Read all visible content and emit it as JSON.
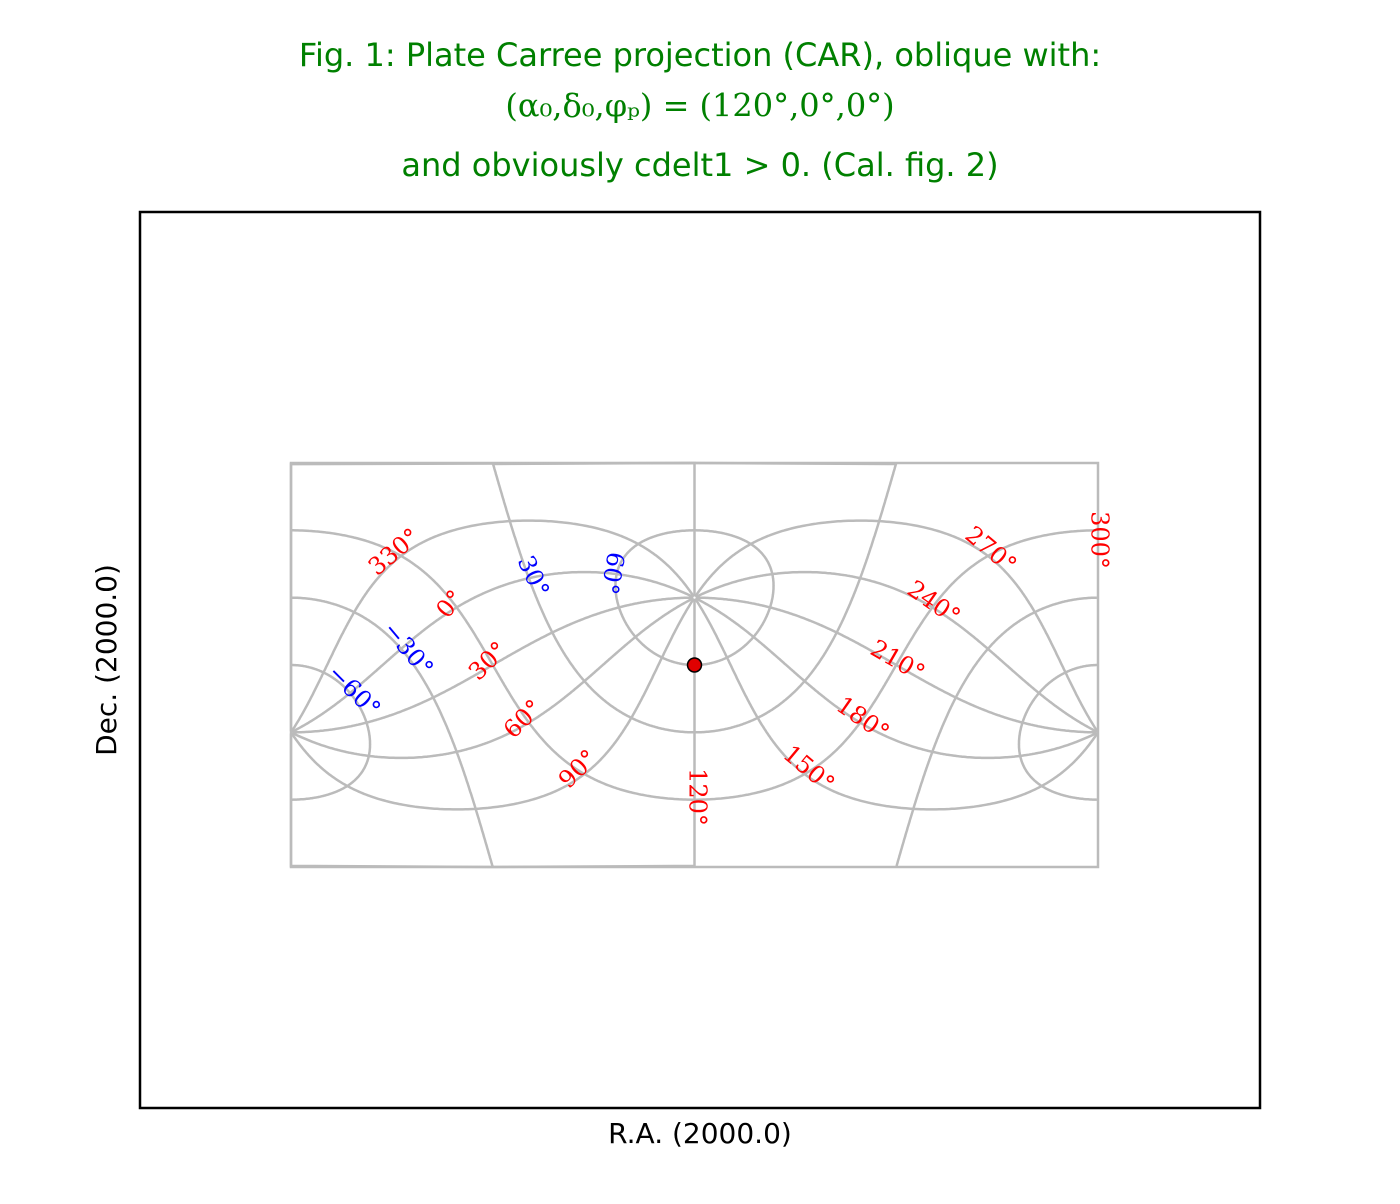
{
  "chart_data": {
    "type": "graticule",
    "title": [
      "Fig. 1: Plate Carree projection (CAR), oblique with:",
      "(α₀,δ₀,φₚ) = (120°,0°,0°)",
      "and obviously cdelt1 > 0. (Cal. fig. 2)"
    ],
    "xlabel": "R.A. (2000.0)",
    "ylabel": "Dec. (2000.0)",
    "ra_labels": [
      "330°",
      "0°",
      "30°",
      "60°",
      "90°",
      "120°",
      "150°",
      "180°",
      "210°",
      "240°",
      "270°",
      "300°"
    ],
    "dec_labels": [
      "30°",
      "60°",
      "−30°",
      "−60°"
    ],
    "ra_color": "#ff0000",
    "dec_color": "#0000ff",
    "grid_color": "#bbbbbb"
  }
}
